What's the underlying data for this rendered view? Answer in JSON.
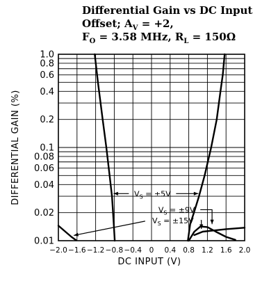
{
  "chart_data": {
    "type": "line",
    "title": [
      "Differential Gain vs DC Input",
      "Offset; A",
      "V",
      " =  +2,",
      "F",
      "O",
      " = 3.58 MHz, R",
      "L",
      " = 150Ω"
    ],
    "xlabel": "DC INPUT (V)",
    "ylabel": "DIFFERENTIAL GAIN (%)",
    "xlim": [
      -2.0,
      2.0
    ],
    "ylim": [
      0.01,
      1.0
    ],
    "yscale": "log",
    "xticks": [
      -2.0,
      -1.6,
      -1.2,
      -0.8,
      -0.4,
      0,
      0.4,
      0.8,
      1.2,
      1.6,
      2.0
    ],
    "xtick_labels": [
      "−2.0",
      "−1.6",
      "−1.2",
      "−0.8",
      "−0.4",
      "0",
      "0.4",
      "0.8",
      "1.2",
      "1.6",
      "2.0"
    ],
    "yticks": [
      0.01,
      0.02,
      0.04,
      0.06,
      0.08,
      0.1,
      0.2,
      0.4,
      0.6,
      0.8,
      1.0
    ],
    "ytick_labels": [
      "0.01",
      "0.02",
      "0.04",
      "0.06",
      "0.08",
      "0.1",
      "0.2",
      "0.4",
      "0.6",
      "0.8",
      "1.0"
    ],
    "grid": true,
    "series": [
      {
        "name": "VS = ±5V",
        "sub": "S",
        "pre": "V",
        "post": " = ±5V",
        "left": [
          [
            -1.22,
            1.0
          ],
          [
            -1.15,
            0.5
          ],
          [
            -1.05,
            0.2
          ],
          [
            -0.97,
            0.1
          ],
          [
            -0.9,
            0.05
          ],
          [
            -0.85,
            0.03
          ],
          [
            -0.81,
            0.015
          ],
          [
            -0.79,
            0.01
          ]
        ],
        "right": [
          [
            0.78,
            0.01
          ],
          [
            0.83,
            0.015
          ],
          [
            0.91,
            0.02
          ],
          [
            1.02,
            0.03
          ],
          [
            1.14,
            0.05
          ],
          [
            1.28,
            0.1
          ],
          [
            1.4,
            0.2
          ],
          [
            1.48,
            0.4
          ],
          [
            1.53,
            0.6
          ],
          [
            1.57,
            1.0
          ]
        ]
      },
      {
        "name": "VS = ±9V",
        "sub": "S",
        "pre": "V",
        "post": " = ±9V",
        "points": [
          [
            0.8,
            0.01
          ],
          [
            0.92,
            0.0125
          ],
          [
            1.05,
            0.0142
          ],
          [
            1.2,
            0.014
          ],
          [
            1.38,
            0.0125
          ],
          [
            1.6,
            0.011
          ],
          [
            1.8,
            0.0102
          ]
        ]
      },
      {
        "name": "VS = ±15V",
        "sub": "S",
        "pre": "V",
        "post": " = ±15V",
        "left": [
          [
            -2.0,
            0.0145
          ],
          [
            -1.85,
            0.0125
          ],
          [
            -1.72,
            0.011
          ],
          [
            -1.62,
            0.0101
          ]
        ],
        "right": [
          [
            0.92,
            0.0115
          ],
          [
            1.1,
            0.0125
          ],
          [
            1.3,
            0.0128
          ],
          [
            1.6,
            0.0133
          ],
          [
            2.0,
            0.0138
          ]
        ]
      }
    ]
  }
}
